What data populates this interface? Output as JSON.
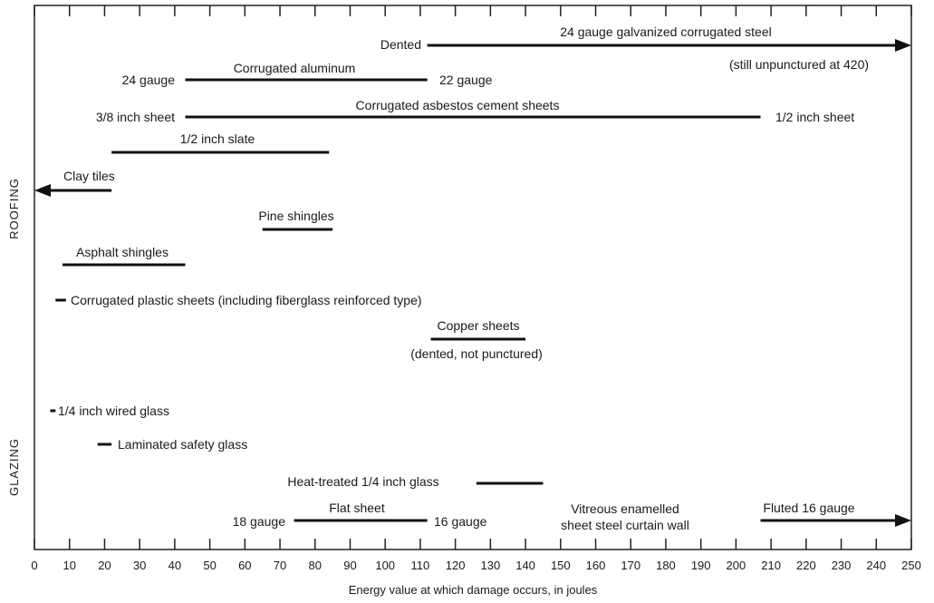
{
  "chart_data": {
    "type": "range-bar",
    "xlabel": "Energy value at which damage occurs, in joules",
    "xlim": [
      0,
      250
    ],
    "xticks": [
      0,
      10,
      20,
      30,
      40,
      50,
      60,
      70,
      80,
      90,
      100,
      110,
      120,
      130,
      140,
      150,
      160,
      170,
      180,
      190,
      200,
      210,
      220,
      230,
      240,
      250
    ],
    "groups": [
      {
        "name": "ROOFING"
      },
      {
        "name": "GLAZING"
      }
    ],
    "series": [
      {
        "group": "ROOFING",
        "label": "24 gauge galvanized corrugated steel",
        "start": 112,
        "end": 250,
        "arrow": "right",
        "start_label": "Dented",
        "note": "(still unpunctured at 420)"
      },
      {
        "group": "ROOFING",
        "label": "Corrugated aluminum",
        "start": 43,
        "end": 112,
        "start_label": "24 gauge",
        "end_label": "22 gauge"
      },
      {
        "group": "ROOFING",
        "label": "Corrugated asbestos cement sheets",
        "start": 43,
        "end": 207,
        "start_label": "3/8 inch sheet",
        "end_label": "1/2 inch sheet"
      },
      {
        "group": "ROOFING",
        "label": "1/2 inch slate",
        "start": 22,
        "end": 84
      },
      {
        "group": "ROOFING",
        "label": "Clay tiles",
        "start": 0,
        "end": 22,
        "arrow": "left"
      },
      {
        "group": "ROOFING",
        "label": "Pine shingles",
        "start": 65,
        "end": 85
      },
      {
        "group": "ROOFING",
        "label": "Asphalt shingles",
        "start": 8,
        "end": 43
      },
      {
        "group": "ROOFING",
        "label": "Corrugated plastic sheets (including fiberglass reinforced type)",
        "start": 6,
        "end": 9
      },
      {
        "group": "ROOFING",
        "label": "Copper sheets",
        "start": 113,
        "end": 140,
        "note": "(dented, not punctured)"
      },
      {
        "group": "GLAZING",
        "label": "1/4 inch wired glass",
        "start": 4.5,
        "end": 6
      },
      {
        "group": "GLAZING",
        "label": "Laminated safety glass",
        "start": 18,
        "end": 22
      },
      {
        "group": "GLAZING",
        "label": "Heat-treated 1/4 inch glass",
        "start": 126,
        "end": 145
      },
      {
        "group": "GLAZING",
        "label": "Flat sheet",
        "start": 74,
        "end": 112,
        "start_label": "18 gauge",
        "end_label": "16 gauge"
      },
      {
        "group": "GLAZING",
        "label": "Fluted 16 gauge",
        "start": 207,
        "end": 250,
        "arrow": "right"
      },
      {
        "group": "GLAZING",
        "label": "Vitreous enamelled sheet steel curtain wall",
        "start": null,
        "end": null
      }
    ]
  }
}
